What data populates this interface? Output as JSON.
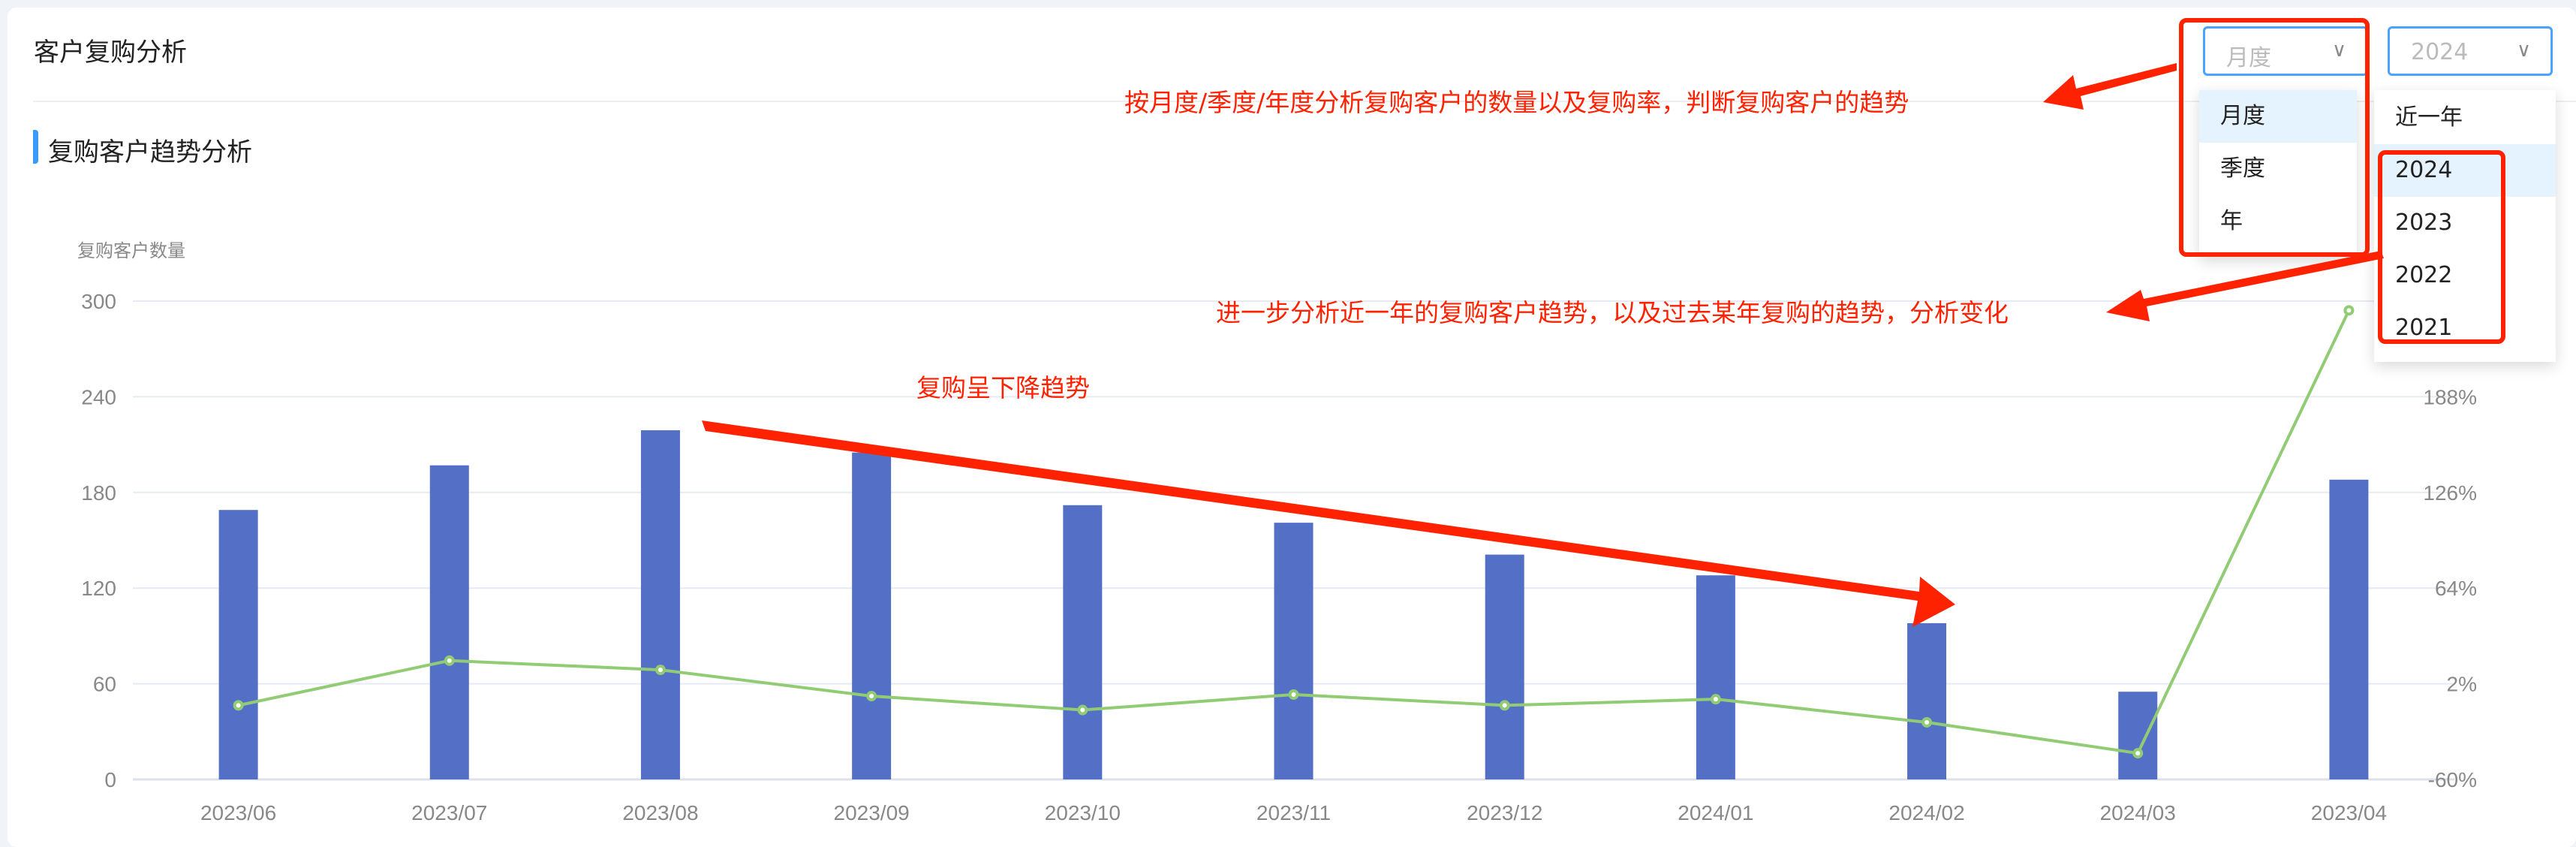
{
  "header": {
    "title": "客户复购分析"
  },
  "section": {
    "title": "复购客户趋势分析"
  },
  "filters": {
    "period": {
      "value": "月度",
      "options": [
        "月度",
        "季度",
        "年"
      ],
      "active": 0
    },
    "year": {
      "value": "2024",
      "options": [
        "近一年",
        "2024",
        "2023",
        "2022",
        "2021"
      ],
      "active": 1
    }
  },
  "annotations": {
    "filter_note": "按月度/季度/年度分析复购客户的数量以及复购率，判断复购客户的趋势",
    "year_note": "进一步分析近一年的复购客户趋势，以及过去某年复购的趋势，分析变化",
    "trend_note": "复购呈下降趋势",
    "color": "#ff2200"
  },
  "chart_data": {
    "type": "bar+line",
    "ylabel": "复购客户数量",
    "categories": [
      "2023/06",
      "2023/07",
      "2023/08",
      "2023/09",
      "2023/10",
      "2023/11",
      "2023/12",
      "2024/01",
      "2024/02",
      "2024/03",
      "2023/04"
    ],
    "y_left": {
      "range": [
        0,
        300
      ],
      "ticks": [
        "0",
        "60",
        "120",
        "180",
        "240",
        "300"
      ]
    },
    "y_right": {
      "range": [
        -60,
        250
      ],
      "ticks": [
        "-60%",
        "2%",
        "64%",
        "126%",
        "188%"
      ]
    },
    "series": [
      {
        "type": "bar",
        "axis": "left",
        "color": "#5470c6",
        "values": [
          169,
          197,
          219,
          205,
          172,
          161,
          141,
          128,
          98,
          55,
          188
        ]
      },
      {
        "type": "line",
        "axis": "right",
        "color": "#91cc75",
        "values": [
          -12,
          17,
          11,
          -6,
          -15,
          -5,
          -12,
          -8,
          -23,
          -43,
          244
        ]
      }
    ],
    "grid": true
  }
}
